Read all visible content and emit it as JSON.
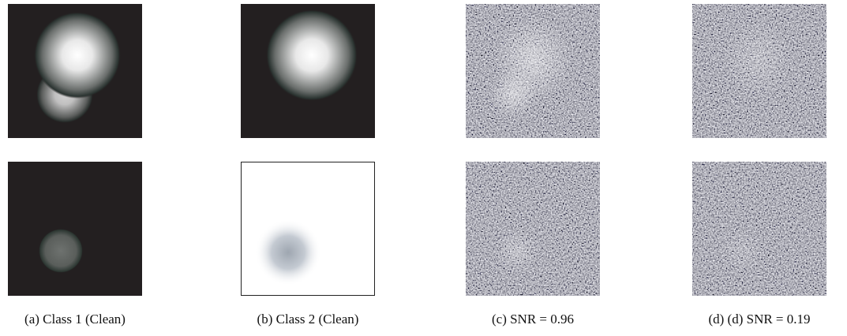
{
  "captions": [
    "(a) Class 1 (Clean)",
    "(b) Class 2 (Clean)",
    "(c) SNR = 0.96",
    "(d) (d) SNR = 0.19"
  ]
}
